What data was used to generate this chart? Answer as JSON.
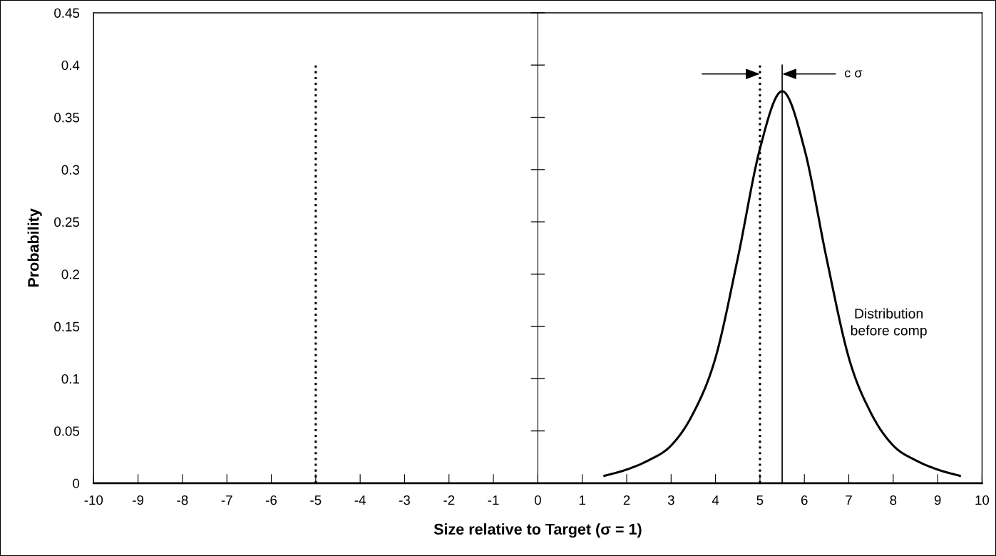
{
  "chart_data": {
    "type": "line",
    "xlabel": "Size relative to Target (σ = 1)",
    "ylabel": "Probability",
    "xlim": [
      -10,
      10
    ],
    "xticks": [
      -10,
      -9,
      -8,
      -7,
      -6,
      -5,
      -4,
      -3,
      -2,
      -1,
      0,
      1,
      2,
      3,
      4,
      5,
      6,
      7,
      8,
      9,
      10
    ],
    "ylim": [
      0,
      0.45
    ],
    "yticks": [
      0,
      0.05,
      0.1,
      0.15,
      0.2,
      0.25,
      0.3,
      0.35,
      0.4,
      0.45
    ],
    "grid": false,
    "legend": false,
    "marker": "none",
    "line_style": "solid",
    "series": [
      {
        "color": "#000000",
        "x": [
          1.5,
          2,
          2.5,
          3,
          3.5,
          4,
          4.5,
          5,
          5.5,
          6,
          6.5,
          7,
          7.5,
          8,
          8.5,
          9,
          9.5
        ],
        "values": [
          0.007,
          0.013,
          0.022,
          0.036,
          0.067,
          0.12,
          0.215,
          0.32,
          0.375,
          0.32,
          0.215,
          0.12,
          0.067,
          0.036,
          0.022,
          0.013,
          0.007
        ]
      }
    ],
    "ref_lines": [
      {
        "axis": "x",
        "value": -5,
        "line_style": "dotted",
        "color": "#000000"
      },
      {
        "axis": "x",
        "value": 5,
        "line_style": "dotted",
        "color": "#000000"
      },
      {
        "axis": "x",
        "value": 5.5,
        "line_style": "solid",
        "color": "#000000"
      }
    ],
    "annotations": [
      "c σ",
      "Distribution\nbefore comp"
    ]
  }
}
